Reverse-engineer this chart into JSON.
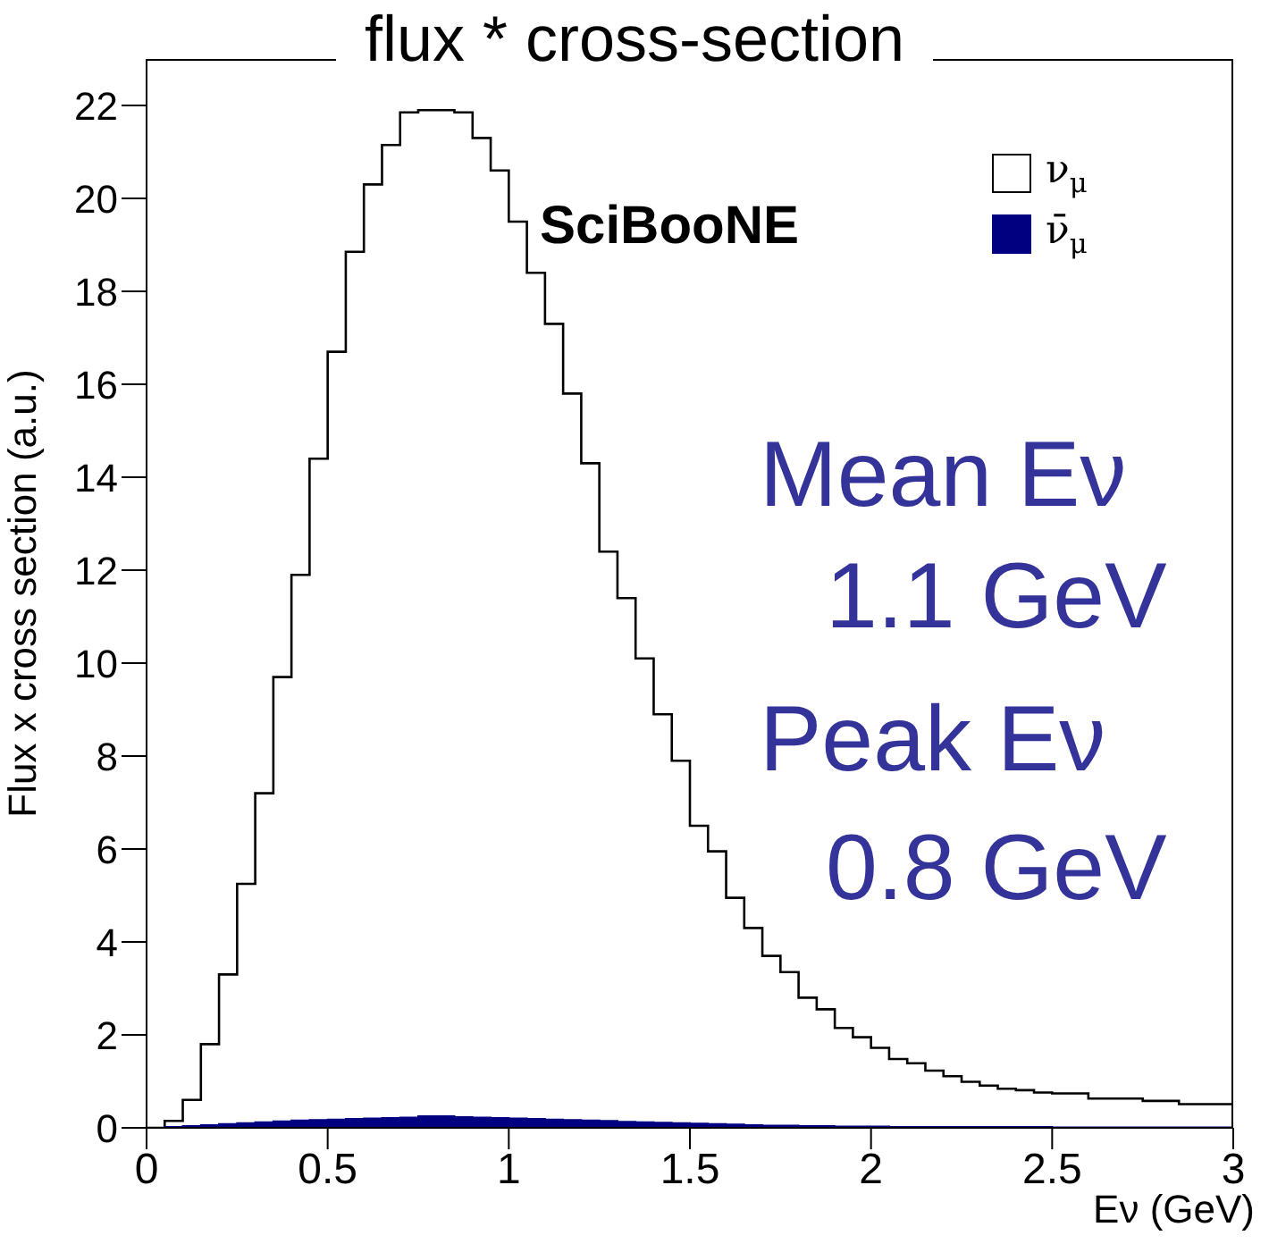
{
  "chart_data": {
    "type": "histogram",
    "title": "flux * cross-section",
    "xlabel": "Eν (GeV)",
    "ylabel": "Flux x cross section (a.u.)",
    "bins": [
      0,
      0.05,
      0.1,
      0.15,
      0.2,
      0.25,
      0.3,
      0.35,
      0.4,
      0.45,
      0.5,
      0.55,
      0.6,
      0.65,
      0.7,
      0.75,
      0.8,
      0.85,
      0.9,
      0.95,
      1,
      1.05,
      1.1,
      1.15,
      1.2,
      1.25,
      1.3,
      1.35,
      1.4,
      1.45,
      1.5,
      1.55,
      1.6,
      1.65,
      1.7,
      1.75,
      1.8,
      1.85,
      1.9,
      1.95,
      2,
      2.05,
      2.1,
      2.15,
      2.2,
      2.25,
      2.3,
      2.35,
      2.4,
      2.45,
      2.5,
      2.6,
      2.75,
      2.85,
      3
    ],
    "series": [
      {
        "name": "ν$_{μ}$",
        "type": "step",
        "color": "#000000",
        "x": [
          0,
          0.05,
          0.1,
          0.15,
          0.2,
          0.25,
          0.3,
          0.35,
          0.4,
          0.45,
          0.5,
          0.55,
          0.6,
          0.65,
          0.7,
          0.75,
          0.8,
          0.85,
          0.9,
          0.95,
          1,
          1.05,
          1.1,
          1.15,
          1.2,
          1.25,
          1.3,
          1.35,
          1.4,
          1.45,
          1.5,
          1.55,
          1.6,
          1.65,
          1.7,
          1.75,
          1.8,
          1.85,
          1.9,
          1.95,
          2,
          2.05,
          2.1,
          2.15,
          2.2,
          2.25,
          2.3,
          2.35,
          2.4,
          2.45,
          2.5,
          2.6,
          2.75,
          2.85,
          3
        ],
        "values": [
          0,
          0.15,
          0.6,
          1.8,
          3.3,
          5.25,
          7.2,
          9.7,
          11.9,
          14.4,
          16.7,
          18.85,
          20.3,
          21.15,
          21.85,
          21.9,
          21.9,
          21.85,
          21.3,
          20.6,
          19.5,
          18.4,
          17.3,
          15.8,
          14.3,
          12.4,
          11.4,
          10.1,
          8.9,
          7.9,
          6.5,
          5.95,
          4.95,
          4.3,
          3.7,
          3.35,
          2.8,
          2.55,
          2.15,
          1.95,
          1.72,
          1.48,
          1.39,
          1.23,
          1.11,
          0.99,
          0.91,
          0.84,
          0.81,
          0.76,
          0.74,
          0.63,
          0.58,
          0.51,
          0.51
        ]
      },
      {
        "name": "ν̄$_{μ}$",
        "color": "#000080",
        "values": [
          0,
          0.02,
          0.04,
          0.06,
          0.08,
          0.1,
          0.12,
          0.14,
          0.16,
          0.17,
          0.18,
          0.19,
          0.2,
          0.21,
          0.22,
          0.25,
          0.25,
          0.23,
          0.22,
          0.21,
          0.2,
          0.19,
          0.18,
          0.17,
          0.16,
          0.15,
          0.13,
          0.12,
          0.11,
          0.1,
          0.09,
          0.08,
          0.07,
          0.06,
          0.05,
          0.05,
          0.04,
          0.04,
          0.03,
          0.03,
          0.03,
          0.02,
          0.02,
          0.02,
          0.02,
          0.02,
          0.02,
          0.02,
          0.02,
          0.02,
          0.01,
          0.01,
          0.01,
          0.01
        ]
      }
    ],
    "xlim": [
      0,
      3
    ],
    "xticks": [
      0,
      0.5,
      1,
      1.5,
      2,
      2.5,
      3
    ],
    "ylim": [
      0,
      23
    ],
    "yticks": [
      0,
      2,
      4,
      6,
      8,
      10,
      12,
      14,
      16,
      18,
      20,
      22
    ],
    "grid": false,
    "legend": "top right",
    "annotations": [
      "SciBooNE",
      "Mean Eν",
      "1.1 GeV",
      "Peak Eν",
      "0.8 GeV"
    ]
  }
}
